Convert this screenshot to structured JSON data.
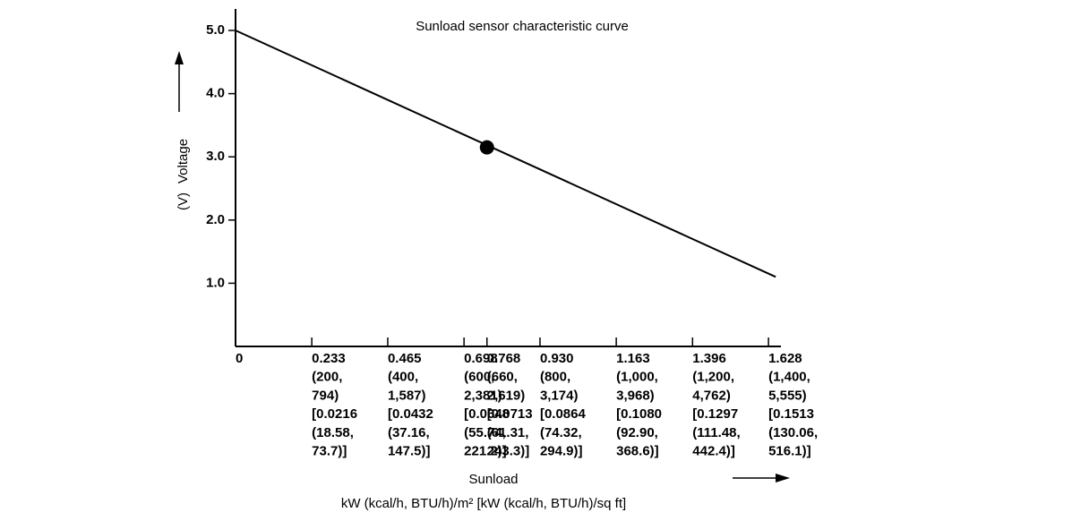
{
  "chart_data": {
    "type": "line",
    "title": "Sunload sensor characteristic curve",
    "y_label": "Voltage",
    "y_unit": "(V)",
    "x_label": "Sunload",
    "x_unit_label": "kW (kcal/h, BTU/h)/m² [kW (kcal/h, BTU/h)/sq ft]",
    "color": "#000000",
    "series": [
      {
        "x": [
          0,
          1.65
        ],
        "values": [
          5.0,
          1.1
        ],
        "color": "#000000"
      },
      {
        "x": [
          0.768
        ],
        "values": [
          3.15
        ],
        "color": "#000000",
        "marker": true
      }
    ],
    "xlim": [
      0,
      1.666
    ],
    "ylim": [
      0,
      5.34
    ],
    "xticks": [
      0,
      {
        "value": 0.233,
        "label": "0.233\n(200,\n794)\n[0.0216\n(18.58,\n73.7)]"
      },
      {
        "value": 0.465,
        "label": "0.465\n(400,\n1,587)\n[0.0432\n(37.16,\n147.5)]"
      },
      {
        "value": 0.698,
        "label": "0.698\n(600,\n2,381)\n[0.0648\n(55.74,\n221.2)]"
      },
      {
        "value": 0.768,
        "label": "0.768\n(660,\n2,619)\n[0.0713\n(61.31,\n243.3)]"
      },
      {
        "value": 0.93,
        "label": "0.930\n(800,\n3,174)\n[0.0864\n(74.32,\n294.9)]"
      },
      {
        "value": 1.163,
        "label": "1.163\n(1,000,\n3,968)\n[0.1080\n(92.90,\n368.6)]"
      },
      {
        "value": 1.396,
        "label": "1.396\n(1,200,\n4,762)\n[0.1297\n(111.48,\n442.4)]"
      },
      {
        "value": 1.628,
        "label": "1.628\n(1,400,\n5,555)\n[0.1513\n(130.06,\n516.1)]"
      }
    ],
    "yticks": [
      {
        "value": 1.0,
        "label": "1.0"
      },
      {
        "value": 2.0,
        "label": "2.0"
      },
      {
        "value": 3.0,
        "label": "3.0"
      },
      {
        "value": 4.0,
        "label": "4.0"
      },
      {
        "value": 5.0,
        "label": "5.0"
      }
    ],
    "grid": false
  }
}
